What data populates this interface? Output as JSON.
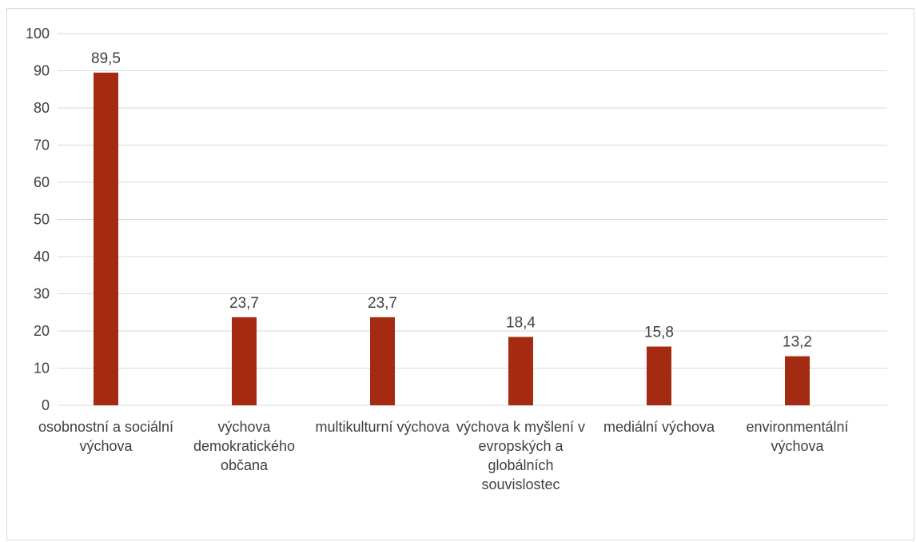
{
  "chart_data": {
    "type": "bar",
    "categories": [
      "osobnostní a sociální výchova",
      "výchova demokratického občana",
      "multikulturní výchova",
      "výchova k myšlení v evropských a globálních souvislostec",
      "mediální výchova",
      "environmentální výchova"
    ],
    "values": [
      89.5,
      23.7,
      23.7,
      18.4,
      15.8,
      13.2
    ],
    "data_labels": [
      "89,5",
      "23,7",
      "23,7",
      "18,4",
      "15,8",
      "13,2"
    ],
    "yticks": [
      "0",
      "10",
      "20",
      "30",
      "40",
      "50",
      "60",
      "70",
      "80",
      "90",
      "100"
    ],
    "ylim": [
      0,
      100
    ],
    "title": "",
    "xlabel": "",
    "ylabel": "",
    "grid": true,
    "legend": "none",
    "bar_color": "#a52a12",
    "grid_color": "#d9d9d9"
  }
}
